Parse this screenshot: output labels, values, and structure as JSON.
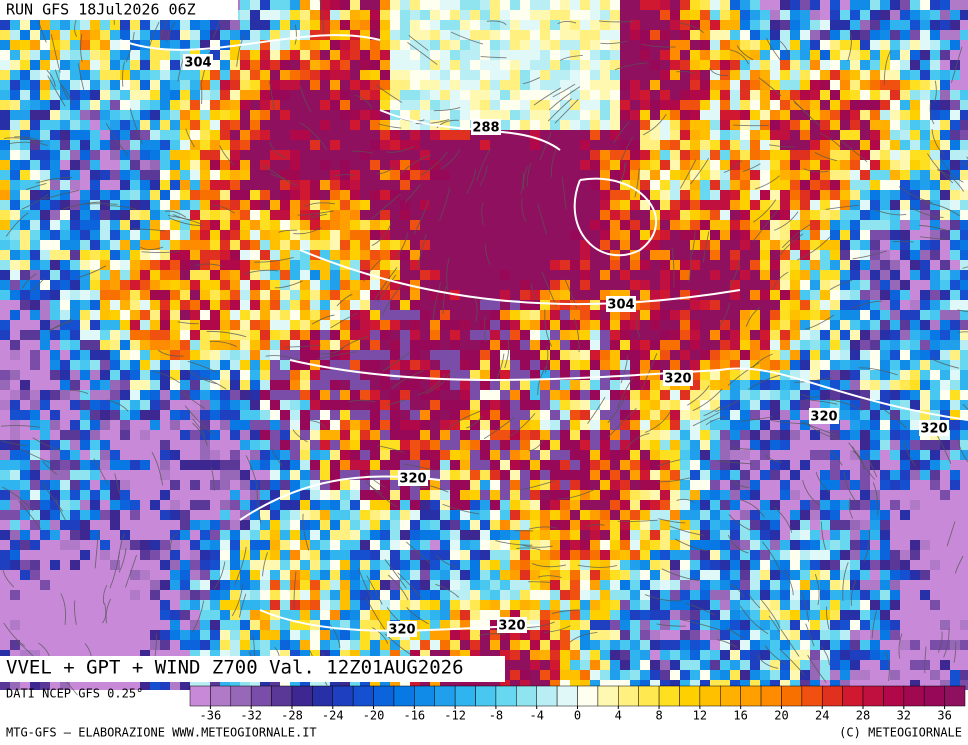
{
  "header": {
    "run": "RUN GFS 18Jul2026 06Z",
    "title": "VVEL + GPT + WIND Z700 Val. 12Z01AUG2026"
  },
  "contour_labels": [
    "304",
    "288",
    "304",
    "320",
    "320",
    "320",
    "320",
    "320",
    "320"
  ],
  "colorbar": {
    "source": "DATI NCEP GFS 0.25°",
    "range": [
      -38,
      38
    ],
    "ticks": [
      -36,
      -32,
      -28,
      -24,
      -20,
      -16,
      -12,
      -8,
      -4,
      0,
      4,
      8,
      12,
      16,
      20,
      24,
      28,
      32,
      36
    ],
    "colors": [
      "#c88ad8",
      "#b07ac8",
      "#9868b8",
      "#7a4ea8",
      "#5a3898",
      "#3c2890",
      "#2830a8",
      "#1e40c0",
      "#1450d0",
      "#0c64dc",
      "#0878e4",
      "#108ce8",
      "#20a0ec",
      "#30b4f0",
      "#48c8f0",
      "#68d8f0",
      "#90e4f0",
      "#b8eef4",
      "#e0f8f8",
      "#fffff0",
      "#fff8b0",
      "#fff080",
      "#ffe850",
      "#ffe020",
      "#ffd000",
      "#ffc000",
      "#ffb000",
      "#ffa000",
      "#ff8c00",
      "#f87000",
      "#f05010",
      "#e03020",
      "#d01830",
      "#c01040",
      "#b00848",
      "#a00850",
      "#980858",
      "#901060"
    ]
  },
  "footer": {
    "left": "MTG-GFS — ELABORAZIONE WWW.METEOGIORNALE.IT",
    "right": "(C) METEOGIORNALE"
  }
}
